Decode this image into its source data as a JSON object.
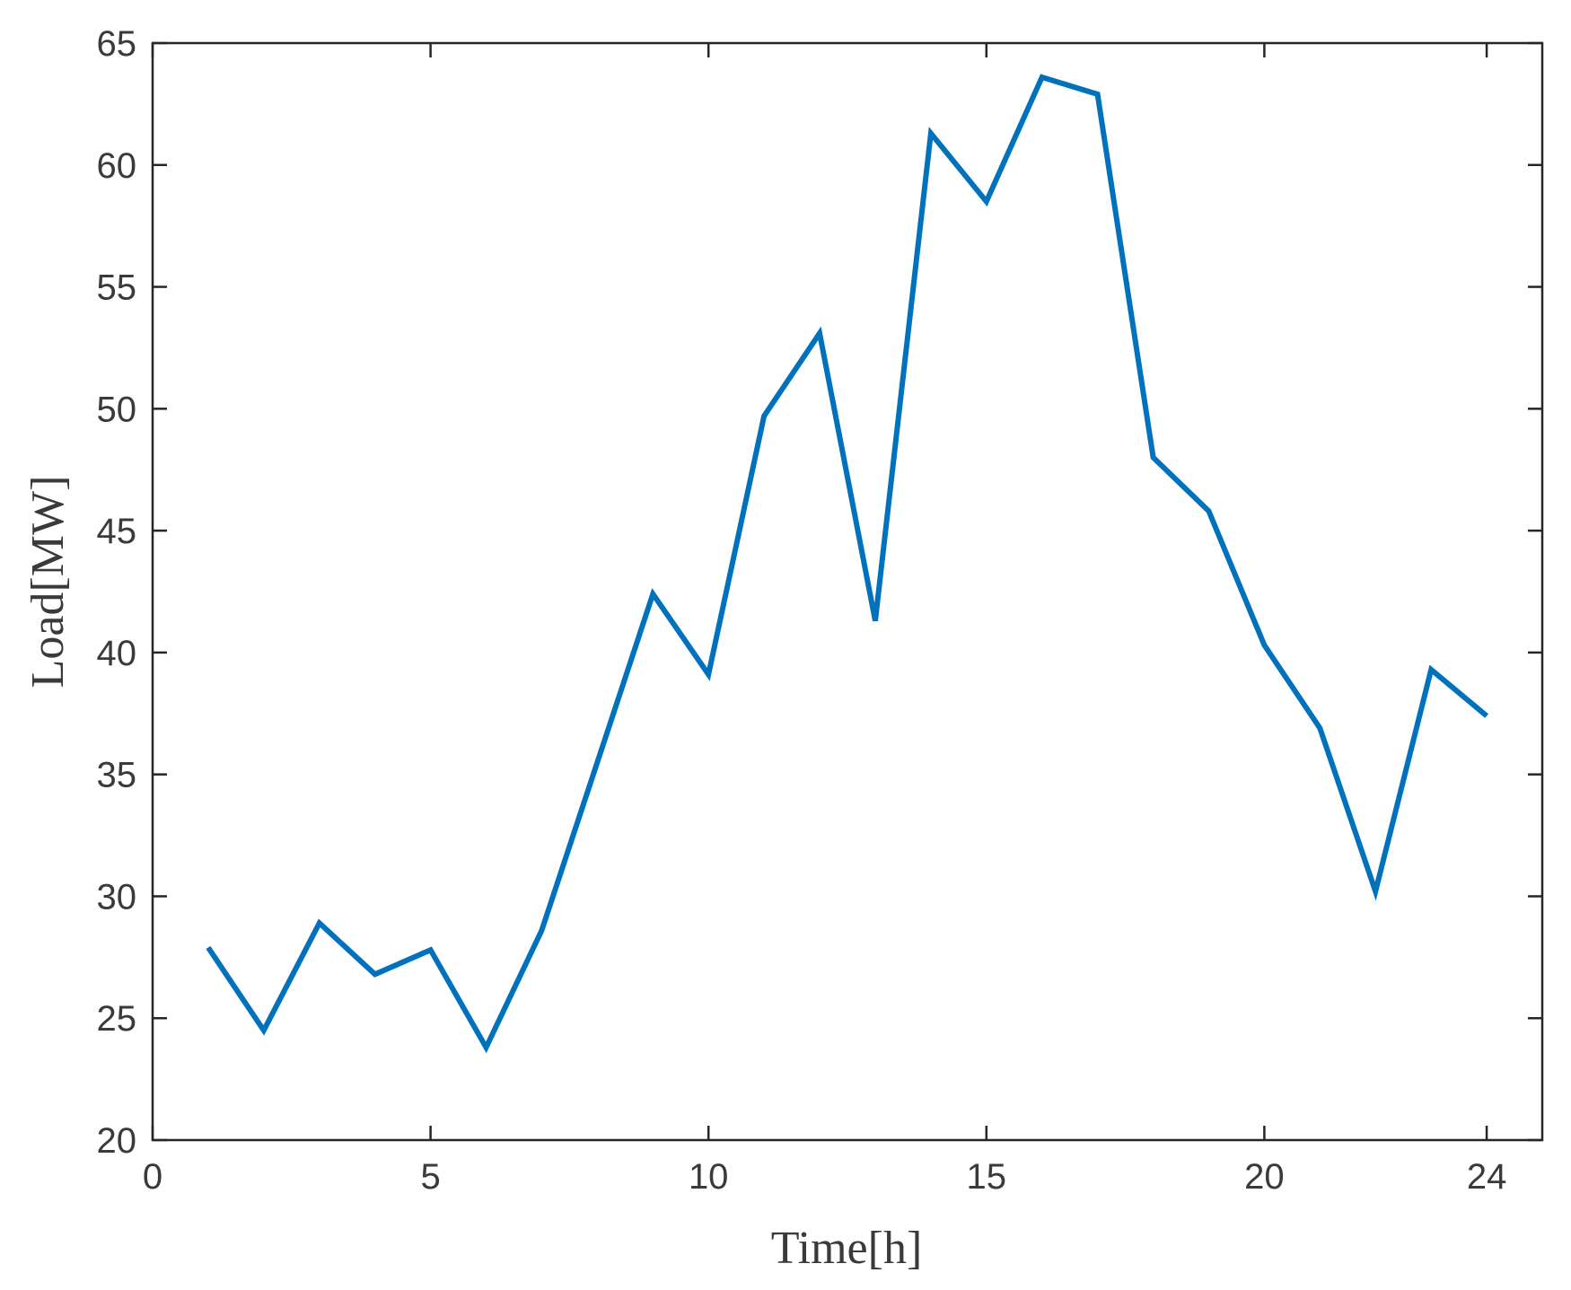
{
  "chart_data": {
    "type": "line",
    "xlabel": "Time[h]",
    "ylabel": "Load[MW]",
    "xlim": [
      0,
      25
    ],
    "ylim": [
      20,
      65
    ],
    "xticks": [
      0,
      5,
      10,
      15,
      20,
      24
    ],
    "yticks": [
      20,
      25,
      30,
      35,
      40,
      45,
      50,
      55,
      60,
      65
    ],
    "grid": false,
    "box": true,
    "line_color": "#0072BD",
    "series": [
      {
        "x": [
          1,
          2,
          3,
          4,
          5,
          6,
          7,
          8,
          9,
          10,
          11,
          12,
          13,
          14,
          15,
          16,
          17,
          18,
          19,
          20,
          21,
          22,
          23,
          24
        ],
        "values": [
          27.9,
          24.5,
          28.9,
          26.8,
          27.8,
          23.8,
          28.6,
          35.5,
          42.4,
          39.1,
          49.7,
          53.1,
          41.3,
          61.3,
          58.5,
          63.6,
          62.9,
          48.0,
          45.8,
          40.3,
          36.9,
          30.2,
          39.3,
          37.4
        ]
      }
    ]
  }
}
